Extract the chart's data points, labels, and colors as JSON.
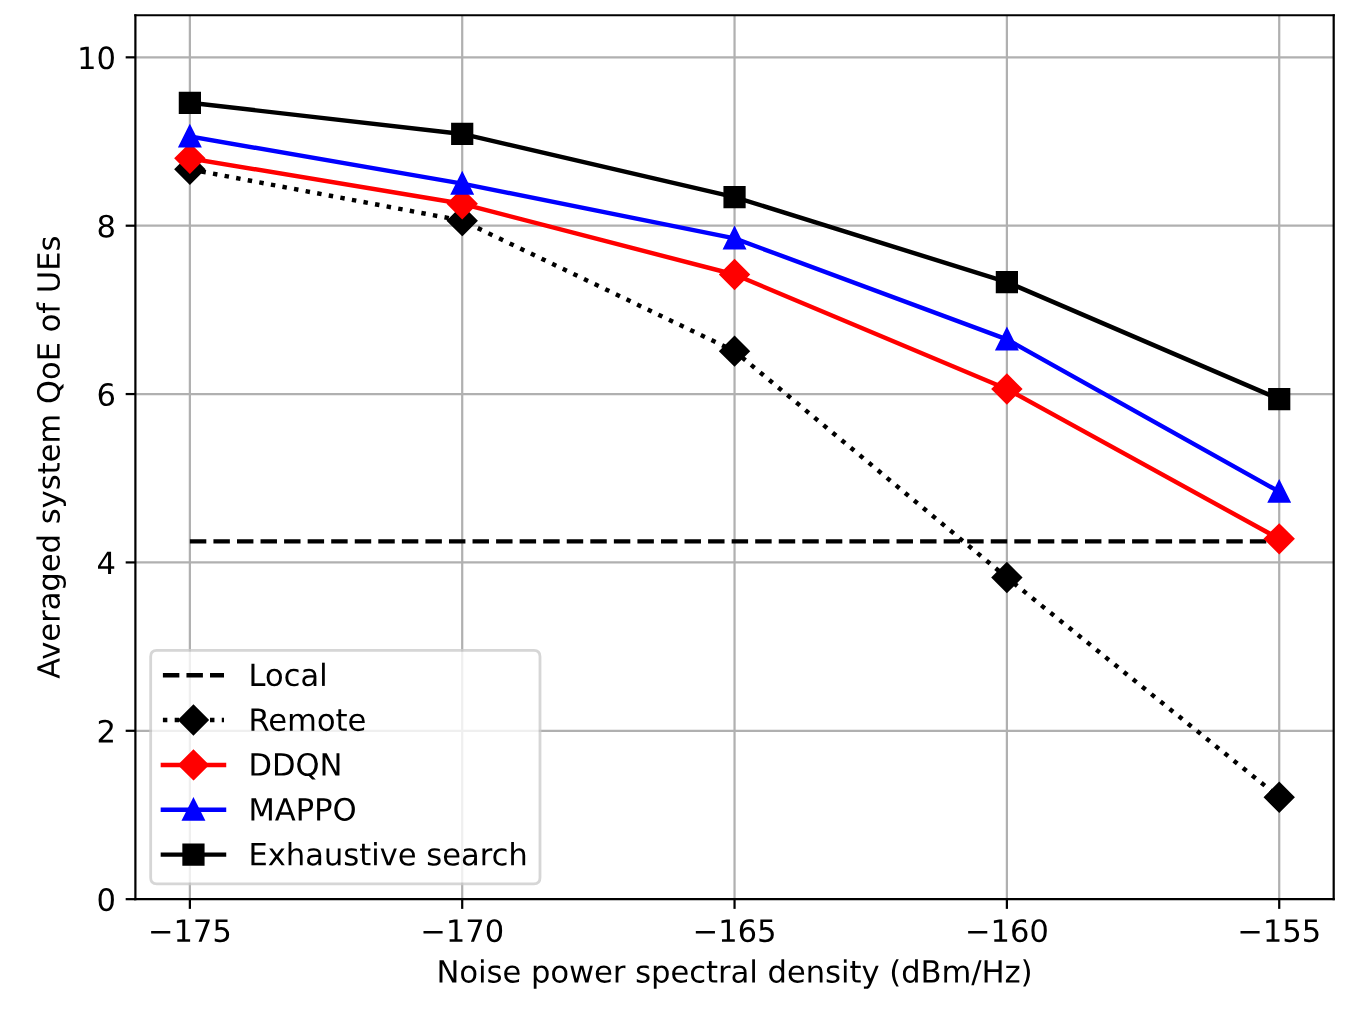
{
  "chart_data": {
    "type": "line",
    "xlabel": "Noise power spectral density (dBm/Hz)",
    "ylabel": "Averaged system QoE of UEs",
    "x": [
      -175,
      -170,
      -165,
      -160,
      -155
    ],
    "series": [
      {
        "name": "Local",
        "color": "#000000",
        "values": [
          4.25,
          4.25,
          4.25,
          4.25,
          4.25
        ],
        "line_style": "dashed",
        "marker": "none"
      },
      {
        "name": "Remote",
        "color": "#000000",
        "values": [
          8.67,
          8.06,
          6.51,
          3.82,
          1.21
        ],
        "line_style": "dotted",
        "marker": "diamond"
      },
      {
        "name": "DDQN",
        "color": "#ff0000",
        "values": [
          8.8,
          8.26,
          7.42,
          6.06,
          4.28
        ],
        "line_style": "solid",
        "marker": "diamond"
      },
      {
        "name": "MAPPO",
        "color": "#0000ff",
        "values": [
          9.06,
          8.5,
          7.85,
          6.65,
          4.84
        ],
        "line_style": "solid",
        "marker": "triangle"
      },
      {
        "name": "Exhaustive search",
        "color": "#000000",
        "values": [
          9.46,
          9.09,
          8.34,
          7.33,
          5.94
        ],
        "line_style": "solid",
        "marker": "square"
      }
    ],
    "xlim": [
      -176,
      -154
    ],
    "ylim": [
      0,
      10.5
    ],
    "xticks": [
      {
        "value": -175,
        "label": "−175"
      },
      {
        "value": -170,
        "label": "−170"
      },
      {
        "value": -165,
        "label": "−165"
      },
      {
        "value": -160,
        "label": "−160"
      },
      {
        "value": -155,
        "label": "−155"
      }
    ],
    "yticks": [
      0,
      2,
      4,
      6,
      8,
      10
    ],
    "grid": true,
    "legend": "bottom left"
  }
}
